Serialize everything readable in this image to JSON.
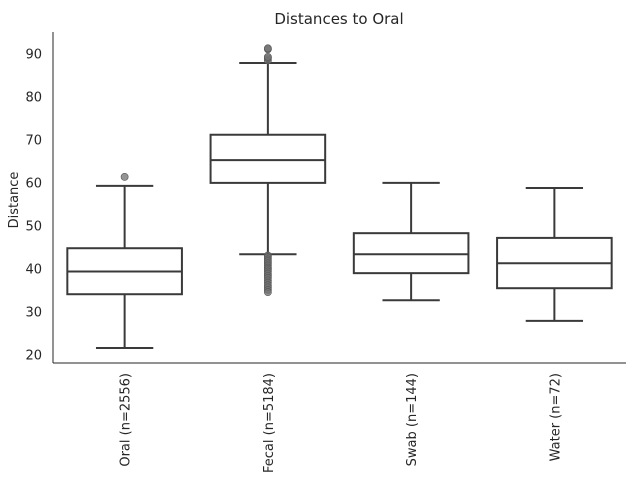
{
  "chart_data": {
    "type": "box",
    "title": "Distances to Oral",
    "xlabel": "",
    "ylabel": "Distance",
    "ylim": [
      18,
      95
    ],
    "yticks": [
      20,
      30,
      40,
      50,
      60,
      70,
      80,
      90
    ],
    "grid": false,
    "colors": {
      "box_edge": "#3a3a3a",
      "outlier": "#707070",
      "axis": "#262626"
    },
    "categories": [
      "Oral (n=2556)",
      "Fecal (n=5184)",
      "Swab (n=144)",
      "Water (n=72)"
    ],
    "boxes": [
      {
        "label": "Oral (n=2556)",
        "whisker_low": 21.5,
        "q1": 34,
        "median": 39.3,
        "q3": 44.7,
        "whisker_high": 59.2,
        "outliers": [
          61.3
        ]
      },
      {
        "label": "Fecal (n=5184)",
        "whisker_low": 43.3,
        "q1": 59.9,
        "median": 65.2,
        "q3": 71.1,
        "whisker_high": 87.8,
        "outliers": [
          88.4,
          88.9,
          89.2,
          91.0,
          91.2,
          43.0,
          42.6,
          42.1,
          41.7,
          41.2,
          40.7,
          40.2,
          39.8,
          39.3,
          38.8,
          38.3,
          37.8,
          37.2,
          36.7,
          36.1,
          35.6,
          35.0,
          34.5
        ]
      },
      {
        "label": "Swab (n=144)",
        "whisker_low": 32.6,
        "q1": 38.9,
        "median": 43.3,
        "q3": 48.2,
        "whisker_high": 59.9,
        "outliers": []
      },
      {
        "label": "Water (n=72)",
        "whisker_low": 27.8,
        "q1": 35.4,
        "median": 41.2,
        "q3": 47.1,
        "whisker_high": 58.7,
        "outliers": []
      }
    ]
  }
}
